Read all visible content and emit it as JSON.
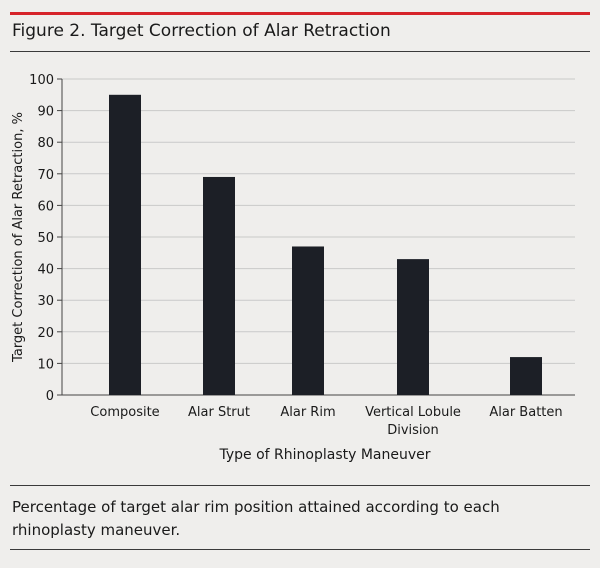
{
  "figure": {
    "title": "Figure 2. Target Correction of Alar Retraction",
    "caption": "Percentage of target alar rim position attained according to each rhinoplasty maneuver."
  },
  "colors": {
    "accent_rule": "#d6232a",
    "bar": "#1c1f26",
    "grid": "#c9c9c9"
  },
  "chart_data": {
    "type": "bar",
    "categories": [
      "Composite",
      "Alar Strut",
      "Alar Rim",
      "Vertical Lobule Division",
      "Alar Batten"
    ],
    "values": [
      95,
      69,
      47,
      43,
      12
    ],
    "xlabel": "Type of Rhinoplasty Maneuver",
    "ylabel": "Target Correction of Alar Retraction, %",
    "ylim": [
      0,
      100
    ],
    "yticks": [
      0,
      10,
      20,
      30,
      40,
      50,
      60,
      70,
      80,
      90,
      100
    ],
    "grid": true
  }
}
